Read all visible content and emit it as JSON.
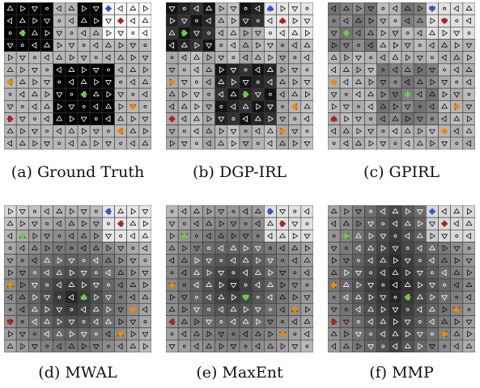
{
  "panels": [
    {
      "caption": "(a) Ground Truth"
    },
    {
      "caption": "(b) DGP-IRL"
    },
    {
      "caption": "(c) GPIRL"
    },
    {
      "caption": "(d) MWAL"
    },
    {
      "caption": "(e) MaxEnt"
    },
    {
      "caption": "(f) MMP"
    }
  ],
  "grid": {
    "cols": 12,
    "rows": 12,
    "colors": {
      "cell_border": "#3a3a3a",
      "arrow_on_dark": "#ffffff",
      "arrow_on_light": "#111111",
      "blue_marker": "#3355cc",
      "red_marker": "#aa2222",
      "green_marker": "#66cc44",
      "orange_marker": "#ee8800"
    }
  }
}
